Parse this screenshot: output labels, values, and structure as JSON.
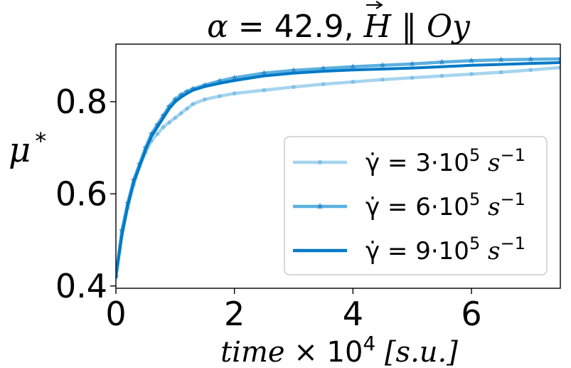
{
  "chart_data": {
    "type": "line",
    "title": {
      "alpha_symbol": "α",
      "equals_value": " = 42.9, ",
      "h_symbol": "H",
      "parallel": " ∥ ",
      "axis_name": "Oy"
    },
    "xlabel": {
      "word": "time",
      "times": " × 10",
      "exponent": "4",
      "unit": " [s.u.]"
    },
    "ylabel": {
      "symbol": "μ",
      "superscript": "*"
    },
    "xlim": [
      0,
      7.5
    ],
    "ylim": [
      0.395,
      0.925
    ],
    "xticks": [
      {
        "value": 0,
        "label": "0"
      },
      {
        "value": 2,
        "label": "2"
      },
      {
        "value": 4,
        "label": "4"
      },
      {
        "value": 6,
        "label": "6"
      }
    ],
    "yticks": [
      {
        "value": 0.4,
        "label": "0.4"
      },
      {
        "value": 0.6,
        "label": "0.6"
      },
      {
        "value": 0.8,
        "label": "0.8"
      }
    ],
    "legend_position": "lower right",
    "grid": false,
    "series": [
      {
        "name": "3·10⁵ s⁻¹",
        "legend_prefix": "γ̇ = 3·10",
        "legend_exp": "5",
        "legend_unit": " s",
        "legend_unit_exp": "−1",
        "color": "#a6d4ee",
        "marker": "dot",
        "x": [
          0,
          0.1,
          0.2,
          0.3,
          0.4,
          0.5,
          0.6,
          0.7,
          0.8,
          0.9,
          1.0,
          1.1,
          1.2,
          1.3,
          1.5,
          1.75,
          2.0,
          2.5,
          3.0,
          3.5,
          4.0,
          4.5,
          5.0,
          5.5,
          6.0,
          6.5,
          7.0,
          7.5
        ],
        "y": [
          0.42,
          0.51,
          0.57,
          0.62,
          0.66,
          0.69,
          0.715,
          0.73,
          0.745,
          0.755,
          0.765,
          0.775,
          0.785,
          0.795,
          0.805,
          0.812,
          0.818,
          0.825,
          0.832,
          0.838,
          0.843,
          0.848,
          0.852,
          0.856,
          0.86,
          0.864,
          0.869,
          0.874
        ]
      },
      {
        "name": "6·10⁵ s⁻¹",
        "legend_prefix": "γ̇ = 6·10",
        "legend_exp": "5",
        "legend_unit": " s",
        "legend_unit_exp": "−1",
        "color": "#5ab0df",
        "marker": "star",
        "x": [
          0,
          0.1,
          0.2,
          0.3,
          0.4,
          0.5,
          0.6,
          0.7,
          0.8,
          0.9,
          1.0,
          1.1,
          1.2,
          1.3,
          1.5,
          1.75,
          2.0,
          2.5,
          3.0,
          3.5,
          4.0,
          4.5,
          5.0,
          5.5,
          6.0,
          6.5,
          7.0,
          7.5
        ],
        "y": [
          0.42,
          0.52,
          0.58,
          0.63,
          0.665,
          0.7,
          0.73,
          0.75,
          0.77,
          0.79,
          0.805,
          0.815,
          0.822,
          0.828,
          0.836,
          0.845,
          0.852,
          0.862,
          0.868,
          0.872,
          0.876,
          0.879,
          0.882,
          0.886,
          0.889,
          0.891,
          0.892,
          0.893
        ]
      },
      {
        "name": "9·10⁵ s⁻¹",
        "legend_prefix": "γ̇ = 9·10",
        "legend_exp": "5",
        "legend_unit": " s",
        "legend_unit_exp": "−1",
        "color": "#0079c7",
        "marker": "none",
        "x": [
          0,
          0.1,
          0.2,
          0.3,
          0.4,
          0.5,
          0.6,
          0.7,
          0.8,
          0.9,
          1.0,
          1.1,
          1.2,
          1.3,
          1.5,
          1.75,
          2.0,
          2.5,
          3.0,
          3.5,
          4.0,
          4.5,
          5.0,
          5.5,
          6.0,
          6.5,
          7.0,
          7.5
        ],
        "y": [
          0.42,
          0.51,
          0.575,
          0.625,
          0.66,
          0.695,
          0.725,
          0.745,
          0.765,
          0.785,
          0.8,
          0.81,
          0.818,
          0.825,
          0.833,
          0.84,
          0.846,
          0.856,
          0.862,
          0.866,
          0.869,
          0.871,
          0.873,
          0.876,
          0.879,
          0.881,
          0.883,
          0.885
        ]
      }
    ]
  }
}
